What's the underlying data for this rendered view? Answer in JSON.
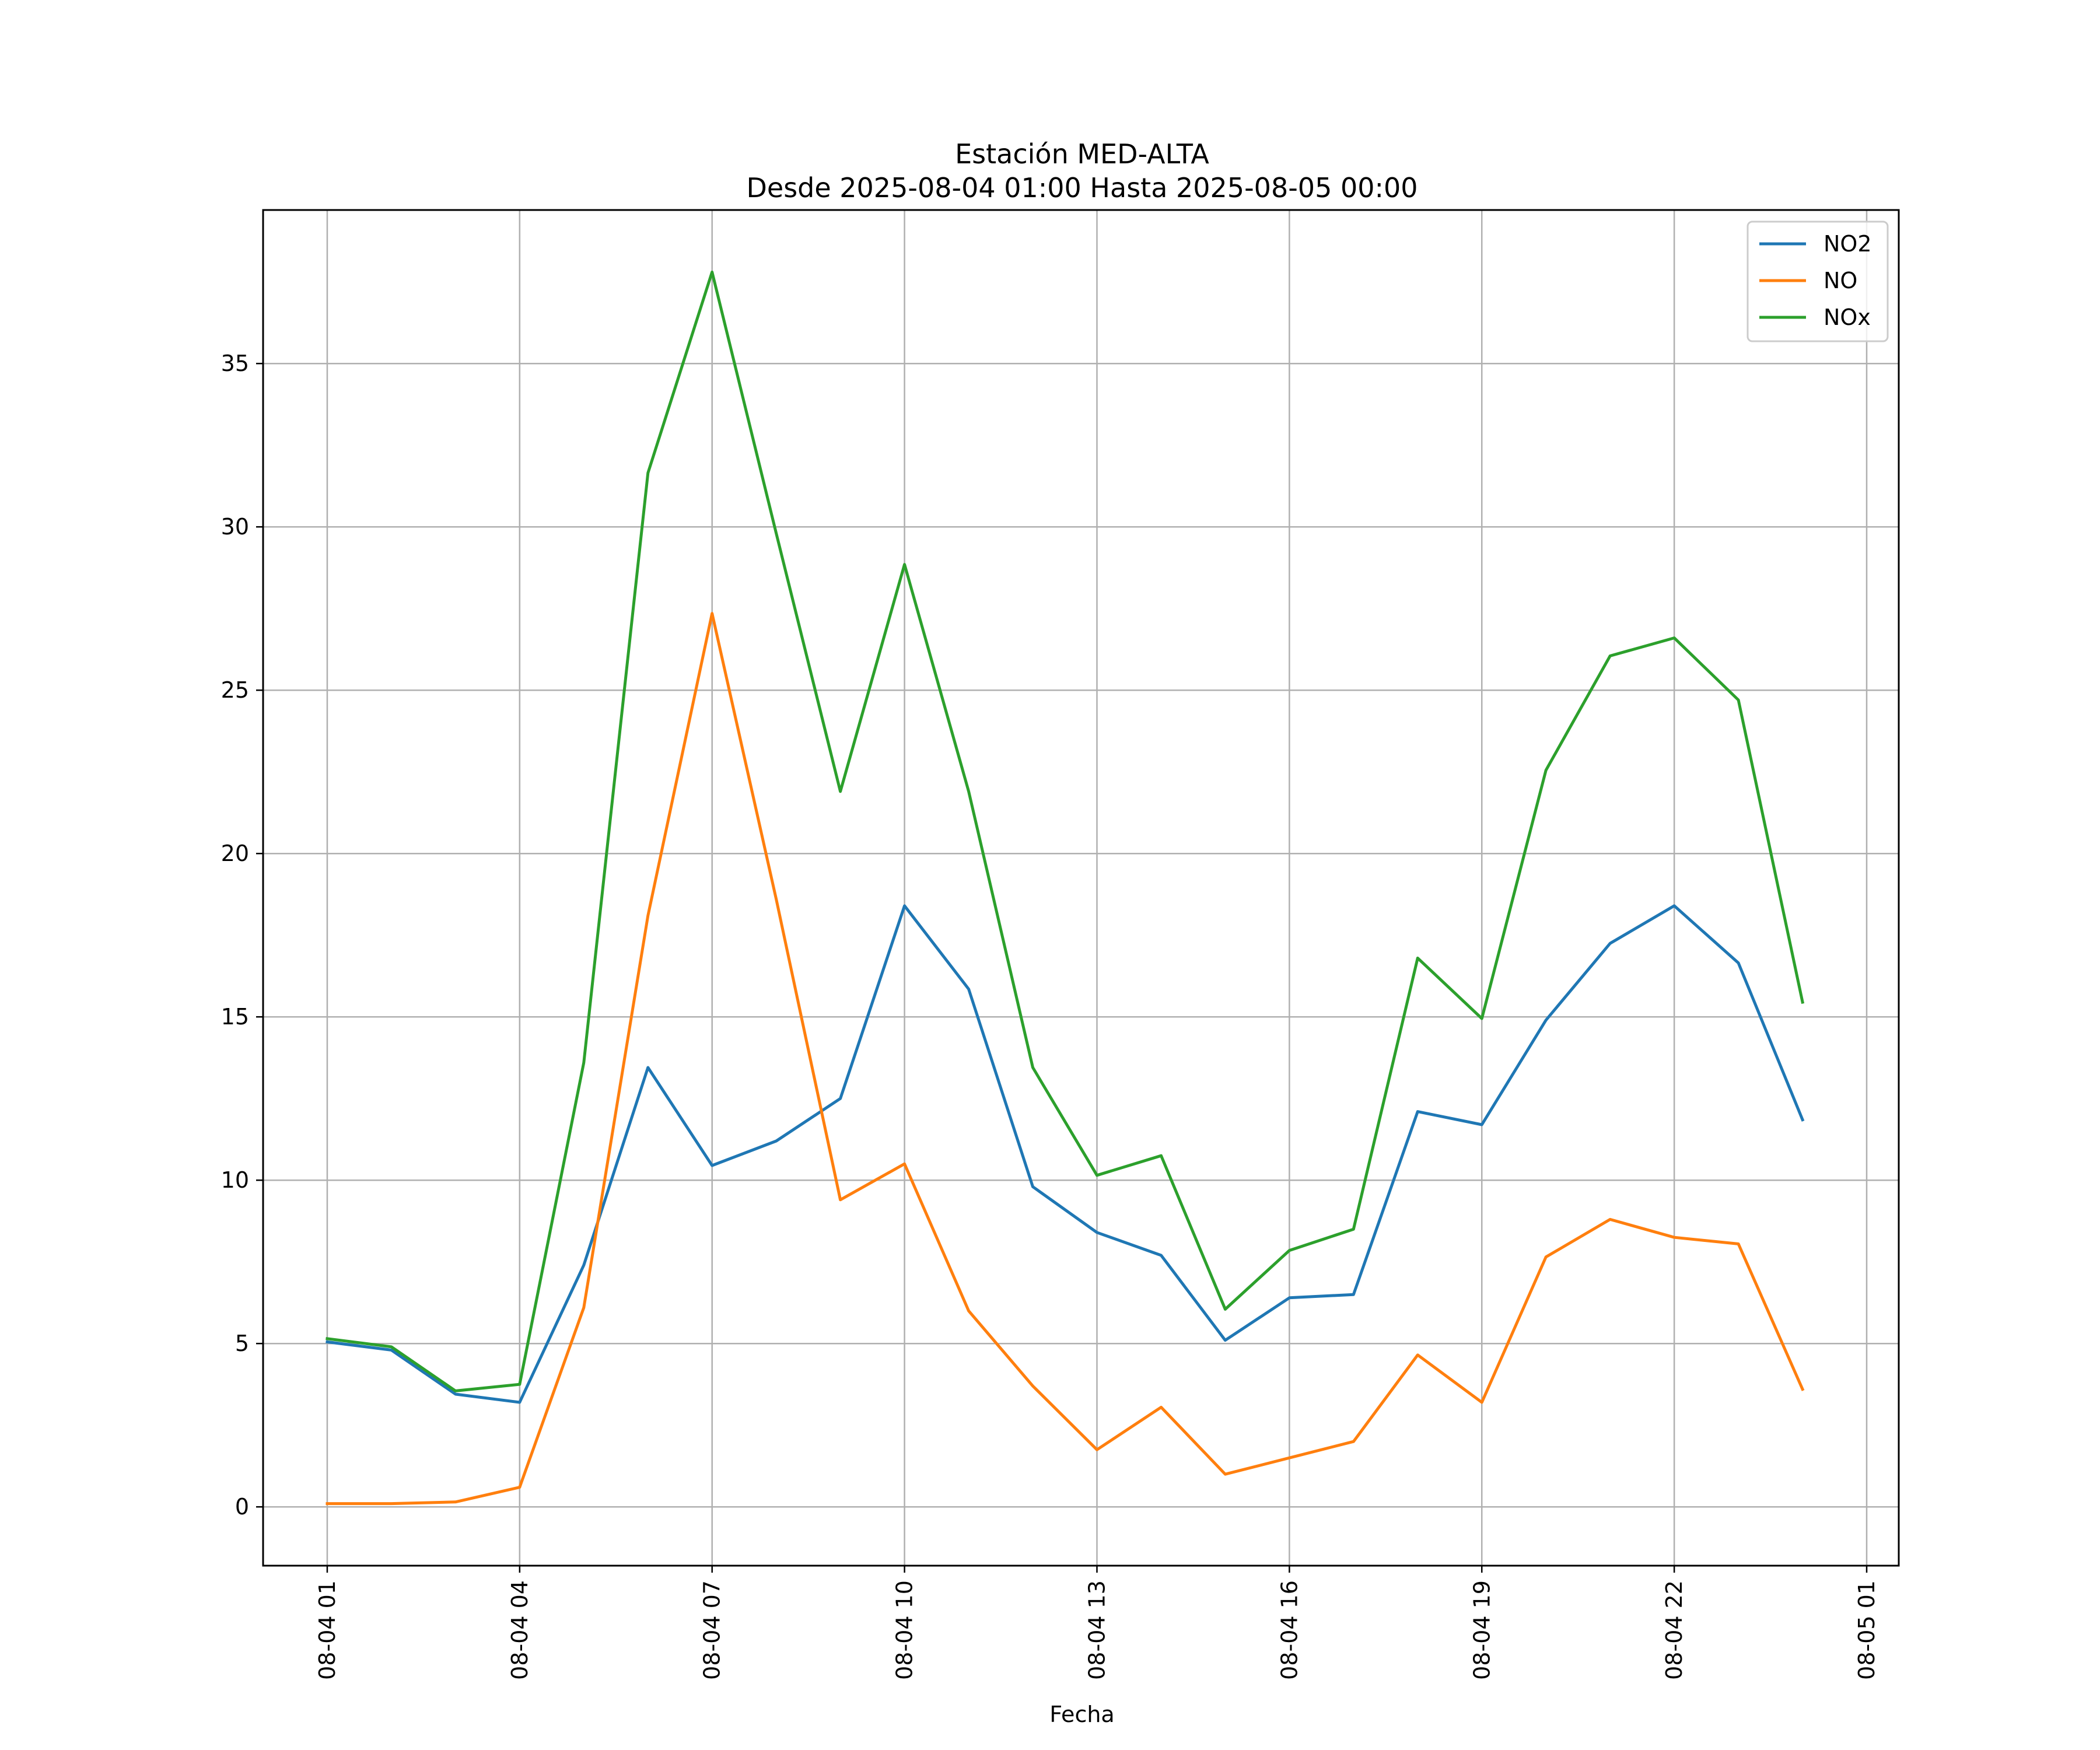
{
  "chart_data": {
    "type": "line",
    "title": "Estación MED-ALTA",
    "subtitle": "Desde 2025-08-04 01:00 Hasta 2025-08-05 00:00",
    "xlabel": "Fecha",
    "ylabel": "",
    "x": [
      "2025-08-04 01:00",
      "2025-08-04 02:00",
      "2025-08-04 03:00",
      "2025-08-04 04:00",
      "2025-08-04 05:00",
      "2025-08-04 06:00",
      "2025-08-04 07:00",
      "2025-08-04 08:00",
      "2025-08-04 09:00",
      "2025-08-04 10:00",
      "2025-08-04 11:00",
      "2025-08-04 12:00",
      "2025-08-04 13:00",
      "2025-08-04 14:00",
      "2025-08-04 15:00",
      "2025-08-04 16:00",
      "2025-08-04 17:00",
      "2025-08-04 18:00",
      "2025-08-04 19:00",
      "2025-08-04 20:00",
      "2025-08-04 21:00",
      "2025-08-04 22:00",
      "2025-08-04 23:00",
      "2025-08-05 00:00"
    ],
    "x_ticks": [
      "08-04 01",
      "08-04 04",
      "08-04 07",
      "08-04 10",
      "08-04 13",
      "08-04 16",
      "08-04 19",
      "08-04 22",
      "08-05 01"
    ],
    "xlim": [
      "2025-08-04 00:00",
      "2025-08-05 01:30"
    ],
    "y_ticks": [
      0,
      5,
      10,
      15,
      20,
      25,
      30,
      35
    ],
    "ylim": [
      -1.8,
      39.7
    ],
    "grid": true,
    "legend": "top-right",
    "series": [
      {
        "name": "NO2",
        "color": "#1f77b4",
        "values": [
          5.05,
          4.8,
          3.45,
          3.2,
          7.4,
          13.45,
          10.45,
          11.2,
          12.5,
          18.4,
          15.85,
          9.8,
          8.4,
          7.7,
          5.1,
          6.4,
          6.5,
          12.1,
          11.7,
          14.9,
          17.25,
          18.4,
          16.65,
          11.85
        ]
      },
      {
        "name": "NO",
        "color": "#ff7f0e",
        "values": [
          0.1,
          0.1,
          0.15,
          0.6,
          6.1,
          18.1,
          27.35,
          18.6,
          9.4,
          10.5,
          6.0,
          3.7,
          1.75,
          3.05,
          1.0,
          1.5,
          2.0,
          4.65,
          3.2,
          7.65,
          8.8,
          8.25,
          8.05,
          3.6
        ]
      },
      {
        "name": "NOx",
        "color": "#2ca02c",
        "values": [
          5.15,
          4.9,
          3.55,
          3.75,
          13.6,
          31.65,
          37.8,
          29.8,
          21.9,
          28.85,
          21.9,
          13.45,
          10.15,
          10.75,
          6.05,
          7.85,
          8.5,
          16.8,
          14.95,
          22.55,
          26.05,
          26.6,
          24.7,
          15.45
        ]
      }
    ]
  }
}
